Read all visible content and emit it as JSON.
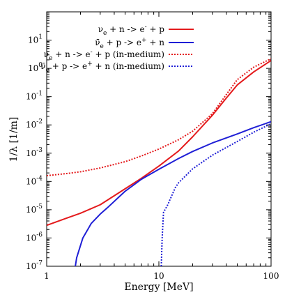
{
  "chart_data": {
    "type": "line",
    "title": "",
    "xlabel": "Energy [MeV]",
    "ylabel": "1/λ [1/m]",
    "xscale": "log",
    "yscale": "log",
    "xlim": [
      1,
      100
    ],
    "ylim": [
      1e-07,
      100
    ],
    "x_ticks": [
      {
        "value": 1,
        "label": "1"
      },
      {
        "value": 10,
        "label": "10"
      },
      {
        "value": 100,
        "label": "100"
      }
    ],
    "y_ticks": [
      {
        "value": 1e-07,
        "base": "10",
        "exp": "-7"
      },
      {
        "value": 1e-06,
        "base": "10",
        "exp": "-6"
      },
      {
        "value": 1e-05,
        "base": "10",
        "exp": "-5"
      },
      {
        "value": 0.0001,
        "base": "10",
        "exp": "-4"
      },
      {
        "value": 0.001,
        "base": "10",
        "exp": "-3"
      },
      {
        "value": 0.01,
        "base": "10",
        "exp": "-2"
      },
      {
        "value": 0.1,
        "base": "10",
        "exp": "-1"
      },
      {
        "value": 1,
        "base": "10",
        "exp": "0"
      },
      {
        "value": 10,
        "base": "10",
        "exp": "1"
      }
    ],
    "grid": false,
    "legend_position": "top-right",
    "series": [
      {
        "name": "νe + n -> e- + p",
        "legend_parts": [
          {
            "t": "ν",
            "s": "n"
          },
          {
            "t": "e",
            "s": "sub"
          },
          {
            "t": " + n -> e",
            "s": "n"
          },
          {
            "t": "-",
            "s": "sup"
          },
          {
            "t": " + p",
            "s": "n"
          }
        ],
        "color": "#e41a1c",
        "dash": "solid",
        "points": [
          [
            1,
            2.8e-06
          ],
          [
            1.5,
            5e-06
          ],
          [
            2,
            7.5e-06
          ],
          [
            3,
            1.5e-05
          ],
          [
            5,
            5.5e-05
          ],
          [
            7,
            0.00013
          ],
          [
            10,
            0.00035
          ],
          [
            15,
            0.0012
          ],
          [
            20,
            0.0038
          ],
          [
            30,
            0.022
          ],
          [
            40,
            0.09
          ],
          [
            50,
            0.26
          ],
          [
            70,
            0.75
          ],
          [
            100,
            1.9
          ]
        ]
      },
      {
        "name": "ν̄e + p -> e+ + n",
        "legend_parts": [
          {
            "t": "ν̄",
            "s": "n"
          },
          {
            "t": "e",
            "s": "sub"
          },
          {
            "t": " + p -> e",
            "s": "n"
          },
          {
            "t": "+",
            "s": "sup"
          },
          {
            "t": " + n",
            "s": "n"
          }
        ],
        "color": "#1f1fd6",
        "dash": "solid",
        "points": [
          [
            1.8,
            1e-07
          ],
          [
            1.85,
            2e-07
          ],
          [
            2.1,
            1e-06
          ],
          [
            2.5,
            3.3e-06
          ],
          [
            3,
            7e-06
          ],
          [
            3.5,
            1.2e-05
          ],
          [
            5,
            4.5e-05
          ],
          [
            7,
            0.00012
          ],
          [
            10,
            0.00027
          ],
          [
            15,
            0.00065
          ],
          [
            20,
            0.00115
          ],
          [
            30,
            0.0023
          ],
          [
            50,
            0.0048
          ],
          [
            70,
            0.008
          ],
          [
            100,
            0.013
          ]
        ]
      },
      {
        "name": "νe + n -> e- + p (in-medium)",
        "legend_parts": [
          {
            "t": "ν",
            "s": "n"
          },
          {
            "t": "e",
            "s": "sub"
          },
          {
            "t": " + n -> e",
            "s": "n"
          },
          {
            "t": "-",
            "s": "sup"
          },
          {
            "t": " + p (in-medium)",
            "s": "n"
          }
        ],
        "color": "#e41a1c",
        "dash": "dotted",
        "points": [
          [
            1,
            0.00016
          ],
          [
            1.5,
            0.00019
          ],
          [
            2,
            0.00022
          ],
          [
            3,
            0.0003
          ],
          [
            5,
            0.0005
          ],
          [
            7,
            0.0008
          ],
          [
            10,
            0.0014
          ],
          [
            15,
            0.003
          ],
          [
            20,
            0.006
          ],
          [
            30,
            0.025
          ],
          [
            40,
            0.12
          ],
          [
            50,
            0.4
          ],
          [
            70,
            1.1
          ],
          [
            100,
            2.2
          ]
        ]
      },
      {
        "name": "ν̄e + p -> e+ + n (in-medium)",
        "legend_parts": [
          {
            "t": "ν̄",
            "s": "n"
          },
          {
            "t": "e",
            "s": "sub"
          },
          {
            "t": " + p -> e",
            "s": "n"
          },
          {
            "t": "+",
            "s": "sup"
          },
          {
            "t": " + n (in-medium)",
            "s": "n"
          }
        ],
        "color": "#1f1fd6",
        "dash": "dotted",
        "points": [
          [
            10.5,
            1e-07
          ],
          [
            10.7,
            1e-06
          ],
          [
            11,
            8e-06
          ],
          [
            12,
            1.5e-05
          ],
          [
            14,
            6e-05
          ],
          [
            15,
            9e-05
          ],
          [
            20,
            0.00028
          ],
          [
            30,
            0.00085
          ],
          [
            50,
            0.0026
          ],
          [
            70,
            0.0055
          ],
          [
            100,
            0.011
          ]
        ]
      }
    ]
  }
}
